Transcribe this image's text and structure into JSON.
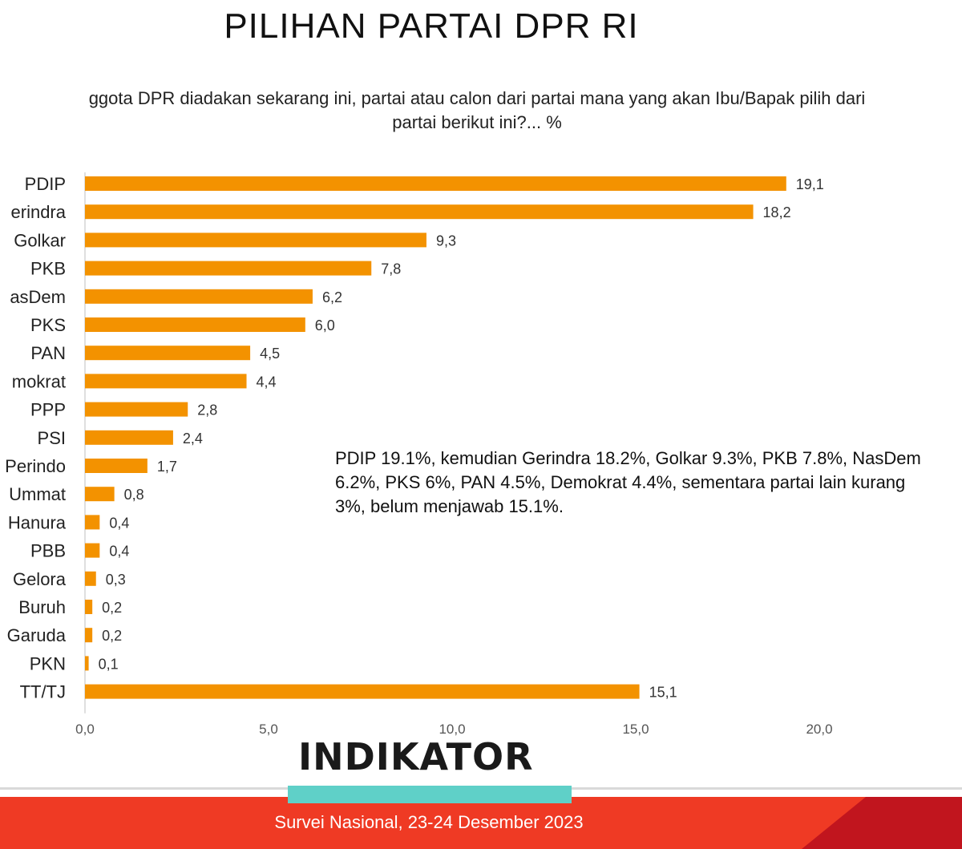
{
  "title": "PILIHAN PARTAI DPR RI",
  "question": {
    "line1": "ggota DPR diadakan sekarang ini, partai atau calon dari partai mana yang akan Ibu/Bapak pilih dari",
    "line2": "partai berikut ini?... %"
  },
  "summary": "PDIP 19.1%, kemudian Gerindra 18.2%, Golkar 9.3%, PKB 7.8%, NasDem\n6.2%, PKS 6%, PAN 4.5%, Demokrat 4.4%, sementara partai lain kurang\n3%, belum menjawab 15.1%.",
  "logo": "INDIKATOR",
  "footer": "Survei Nasional, 23-24 Desember 2023",
  "colors": {
    "bar": "#f39200",
    "footer_red": "#ef3a24",
    "footer_dark": "#c1151e",
    "teal": "#5fd0c8"
  },
  "chart_data": {
    "type": "bar",
    "orientation": "horizontal",
    "categories": [
      "PDIP",
      "Gerindra",
      "Golkar",
      "PKB",
      "NasDem",
      "PKS",
      "PAN",
      "Demokrat",
      "PPP",
      "PSI",
      "Perindo",
      "Ummat",
      "Hanura",
      "PBB",
      "Gelora",
      "Buruh",
      "Garuda",
      "PKN",
      "TT/TJ"
    ],
    "category_labels": [
      "PDIP",
      "erindra",
      "Golkar",
      "PKB",
      "asDem",
      "PKS",
      "PAN",
      "mokrat",
      "PPP",
      "PSI",
      "Perindo",
      "Ummat",
      "Hanura",
      "PBB",
      "Gelora",
      "Buruh",
      "Garuda",
      "PKN",
      "TT/TJ"
    ],
    "values": [
      19.1,
      18.2,
      9.3,
      7.8,
      6.2,
      6.0,
      4.5,
      4.4,
      2.8,
      2.4,
      1.7,
      0.8,
      0.4,
      0.4,
      0.3,
      0.2,
      0.2,
      0.1,
      15.1
    ],
    "value_labels": [
      "19,1",
      "18,2",
      "9,3",
      "7,8",
      "6,2",
      "6,0",
      "4,5",
      "4,4",
      "2,8",
      "2,4",
      "1,7",
      "0,8",
      "0,4",
      "0,4",
      "0,3",
      "0,2",
      "0,2",
      "0,1",
      "15,1"
    ],
    "xlim": [
      0,
      20
    ],
    "xticks": [
      0,
      5,
      10,
      15,
      20
    ],
    "xtick_labels": [
      "0,0",
      "5,0",
      "10,0",
      "15,0",
      "20,0"
    ],
    "grid": false
  }
}
